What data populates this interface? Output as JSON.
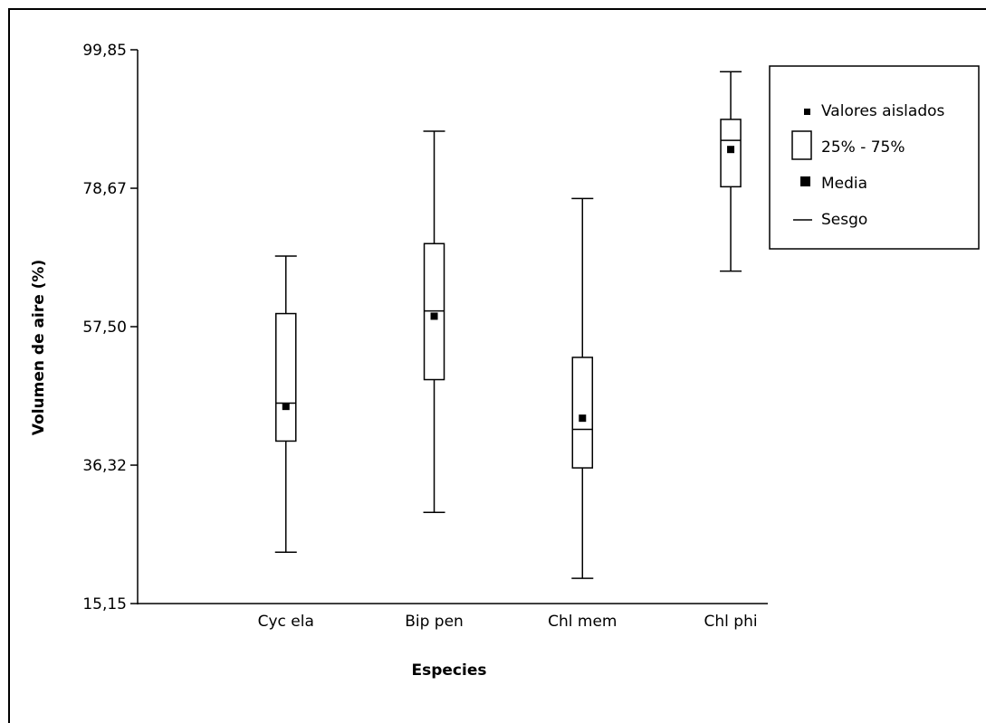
{
  "chart_data": {
    "type": "boxplot",
    "xlabel": "Especies",
    "ylabel": "Volumen de aire (%)",
    "ylim": [
      15.15,
      99.85
    ],
    "yticks": [
      "99,85",
      "78,67",
      "57,50",
      "36,32",
      "15,15"
    ],
    "ytick_values": [
      99.85,
      78.67,
      57.5,
      36.32,
      15.15
    ],
    "categories": [
      "Cyc ela",
      "Bip pen",
      "Chl mem",
      "Chl phi"
    ],
    "boxes": [
      {
        "name": "Cyc ela",
        "min": 23.0,
        "q1": 40.0,
        "median": 45.8,
        "q3": 59.5,
        "max": 68.3,
        "mean": 45.3
      },
      {
        "name": "Bip pen",
        "min": 29.1,
        "q1": 49.4,
        "median": 59.9,
        "q3": 70.2,
        "max": 87.4,
        "mean": 59.1
      },
      {
        "name": "Chl mem",
        "min": 19.0,
        "q1": 35.9,
        "median": 41.8,
        "q3": 52.8,
        "max": 77.1,
        "mean": 43.5
      },
      {
        "name": "Chl phi",
        "min": 66.0,
        "q1": 78.9,
        "median": 86.0,
        "q3": 89.2,
        "max": 96.5,
        "mean": 84.6
      }
    ],
    "legend": {
      "placement": "top-right",
      "items": [
        "Valores aislados",
        "25% - 75%",
        "Media",
        "Sesgo"
      ]
    },
    "grid": false
  }
}
